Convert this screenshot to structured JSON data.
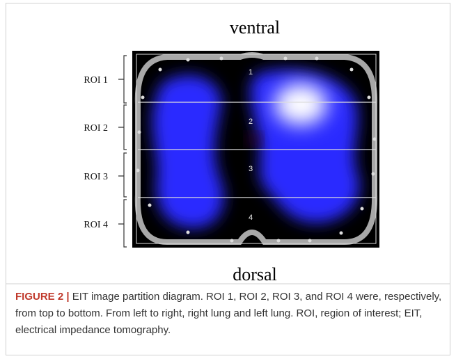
{
  "figure": {
    "top_label": "ventral",
    "bottom_label": "dorsal",
    "roi_labels": [
      "ROI 1",
      "ROI 2",
      "ROI 3",
      "ROI 4"
    ],
    "region_numbers": [
      "1",
      "2",
      "3",
      "4"
    ]
  },
  "caption": {
    "label": "FIGURE 2 |",
    "text": "EIT image partition diagram. ROI 1, ROI 2, ROI 3, and ROI 4 were, respectively, from top to bottom. From left to right, right lung and left lung. ROI, region of interest; EIT, electrical impedance tomography."
  }
}
